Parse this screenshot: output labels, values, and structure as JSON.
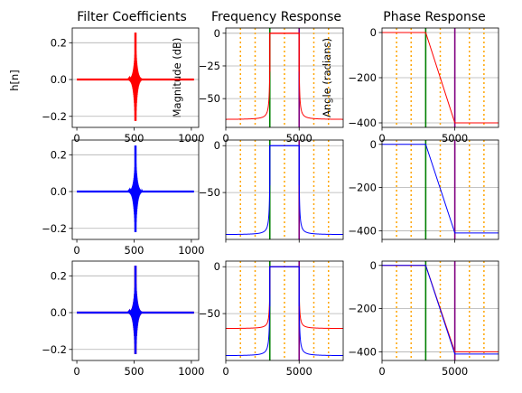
{
  "figure": {
    "titles": [
      "Filter Coefficients",
      "Frequency Response",
      "Phase Response"
    ],
    "ylabels": [
      "h[n]",
      "Magnitude (dB)",
      "Angle (radians)"
    ]
  },
  "colors": {
    "red": "#ff0000",
    "blue": "#0000ff",
    "green": "#008000",
    "purple": "#800080",
    "orange": "#ffa500",
    "grid": "#b0b0b0"
  },
  "chart_data": [
    {
      "type": "line",
      "panel": "coefficients",
      "row": 1,
      "series_colors": [
        "red"
      ],
      "x_range": [
        -40,
        1064
      ],
      "ylim": [
        -0.26,
        0.28
      ],
      "x_ticks": [
        0,
        500,
        1000
      ],
      "y_ticks": [
        -0.2,
        0.0,
        0.2
      ],
      "tick_labels_x": [
        "0",
        "500",
        "1000"
      ],
      "tick_labels_y": [
        "−0.2",
        "0.0",
        "0.2"
      ],
      "center": 512,
      "peak": 0.255,
      "trough": -0.225,
      "grid": "y"
    },
    {
      "type": "line",
      "panel": "magnitude",
      "row": 1,
      "series_colors": [
        "red"
      ],
      "x_range": [
        0,
        8000
      ],
      "ylim": [
        -72,
        4
      ],
      "x_ticks": [
        0,
        5000
      ],
      "y_ticks": [
        0,
        -25,
        -50
      ],
      "tick_labels_x": [
        "0",
        "5000"
      ],
      "tick_labels_y": [
        "0",
        "−25",
        "−50"
      ],
      "passband": [
        3000,
        5000
      ],
      "floor_db": -66,
      "cutoffs": [
        3000,
        5000
      ],
      "markers": [
        1000,
        2000,
        4000,
        6000,
        7000
      ],
      "grid": "y"
    },
    {
      "type": "line",
      "panel": "phase",
      "row": 1,
      "series_colors": [
        "red"
      ],
      "x_range": [
        0,
        8000
      ],
      "ylim": [
        -420,
        20
      ],
      "x_ticks": [
        0,
        5000
      ],
      "y_ticks": [
        0,
        -200,
        -400
      ],
      "tick_labels_x": [
        "0",
        "5000"
      ],
      "tick_labels_y": [
        "0",
        "−200",
        "−400"
      ],
      "points_x": [
        0,
        3000,
        5000,
        8000
      ],
      "points_y": [
        0,
        0,
        -400,
        -400
      ],
      "cutoffs": [
        3000,
        5000
      ],
      "markers": [
        1000,
        2000,
        4000,
        6000,
        7000
      ],
      "grid": "y"
    },
    {
      "type": "line",
      "panel": "coefficients",
      "row": 2,
      "series_colors": [
        "blue"
      ],
      "x_range": [
        -40,
        1064
      ],
      "ylim": [
        -0.26,
        0.28
      ],
      "x_ticks": [
        0,
        500,
        1000
      ],
      "y_ticks": [
        -0.2,
        0.0,
        0.2
      ],
      "tick_labels_x": [
        "0",
        "500",
        "1000"
      ],
      "tick_labels_y": [
        "−0.2",
        "0.0",
        "0.2"
      ],
      "center": 512,
      "peak": 0.25,
      "trough": -0.22,
      "grid": "y"
    },
    {
      "type": "line",
      "panel": "magnitude",
      "row": 2,
      "series_colors": [
        "blue"
      ],
      "x_range": [
        0,
        8000
      ],
      "ylim": [
        -100,
        6
      ],
      "x_ticks": [
        0,
        5000
      ],
      "y_ticks": [
        0,
        -50
      ],
      "tick_labels_x": [
        "",
        ""
      ],
      "tick_labels_y": [
        "0",
        "−50"
      ],
      "passband": [
        3000,
        5000
      ],
      "floor_db": -95,
      "cutoffs": [
        3000,
        5000
      ],
      "markers": [
        1000,
        2000,
        4000,
        6000,
        7000
      ],
      "grid": "y"
    },
    {
      "type": "line",
      "panel": "phase",
      "row": 2,
      "series_colors": [
        "blue"
      ],
      "x_range": [
        0,
        8000
      ],
      "ylim": [
        -440,
        20
      ],
      "x_ticks": [
        0,
        5000
      ],
      "y_ticks": [
        0,
        -200,
        -400
      ],
      "tick_labels_x": [
        "",
        ""
      ],
      "tick_labels_y": [
        "0",
        "−200",
        "−400"
      ],
      "points_x": [
        0,
        3000,
        5000,
        8000
      ],
      "points_y": [
        0,
        0,
        -410,
        -410
      ],
      "cutoffs": [
        3000,
        5000
      ],
      "markers": [
        1000,
        2000,
        4000,
        6000,
        7000
      ],
      "grid": "y"
    },
    {
      "type": "line",
      "panel": "coefficients",
      "row": 3,
      "series_colors": [
        "red",
        "blue"
      ],
      "x_range": [
        -40,
        1064
      ],
      "ylim": [
        -0.26,
        0.28
      ],
      "x_ticks": [
        0,
        500,
        1000
      ],
      "y_ticks": [
        -0.2,
        0.0,
        0.2
      ],
      "tick_labels_x": [
        "0",
        "500",
        "1000"
      ],
      "tick_labels_y": [
        "−0.2",
        "0.0",
        "0.2"
      ],
      "center": 512,
      "peak": 0.255,
      "trough": -0.225,
      "grid": "y"
    },
    {
      "type": "line",
      "panel": "magnitude",
      "row": 3,
      "series_colors": [
        "red",
        "blue"
      ],
      "x_range": [
        0,
        8000
      ],
      "ylim": [
        -100,
        6
      ],
      "x_ticks": [
        0,
        5000
      ],
      "y_ticks": [
        0,
        -50
      ],
      "tick_labels_x": [
        "0",
        "5000"
      ],
      "tick_labels_y": [
        "0",
        "−50"
      ],
      "passband": [
        3000,
        5000
      ],
      "floor_db": -66,
      "floor_db_2": -95,
      "cutoffs": [
        3000,
        5000
      ],
      "markers": [
        1000,
        2000,
        4000,
        6000,
        7000
      ],
      "grid": "y"
    },
    {
      "type": "line",
      "panel": "phase",
      "row": 3,
      "series_colors": [
        "red",
        "blue"
      ],
      "x_range": [
        0,
        8000
      ],
      "ylim": [
        -440,
        20
      ],
      "x_ticks": [
        0,
        5000
      ],
      "y_ticks": [
        0,
        -200,
        -400
      ],
      "tick_labels_x": [
        "0",
        "5000"
      ],
      "tick_labels_y": [
        "0",
        "−200",
        "−400"
      ],
      "points_x": [
        0,
        3000,
        5000,
        8000
      ],
      "points_y": [
        0,
        0,
        -400,
        -400
      ],
      "points_y_2": [
        0,
        0,
        -410,
        -410
      ],
      "cutoffs": [
        3000,
        5000
      ],
      "markers": [
        1000,
        2000,
        4000,
        6000,
        7000
      ],
      "grid": "y"
    }
  ]
}
